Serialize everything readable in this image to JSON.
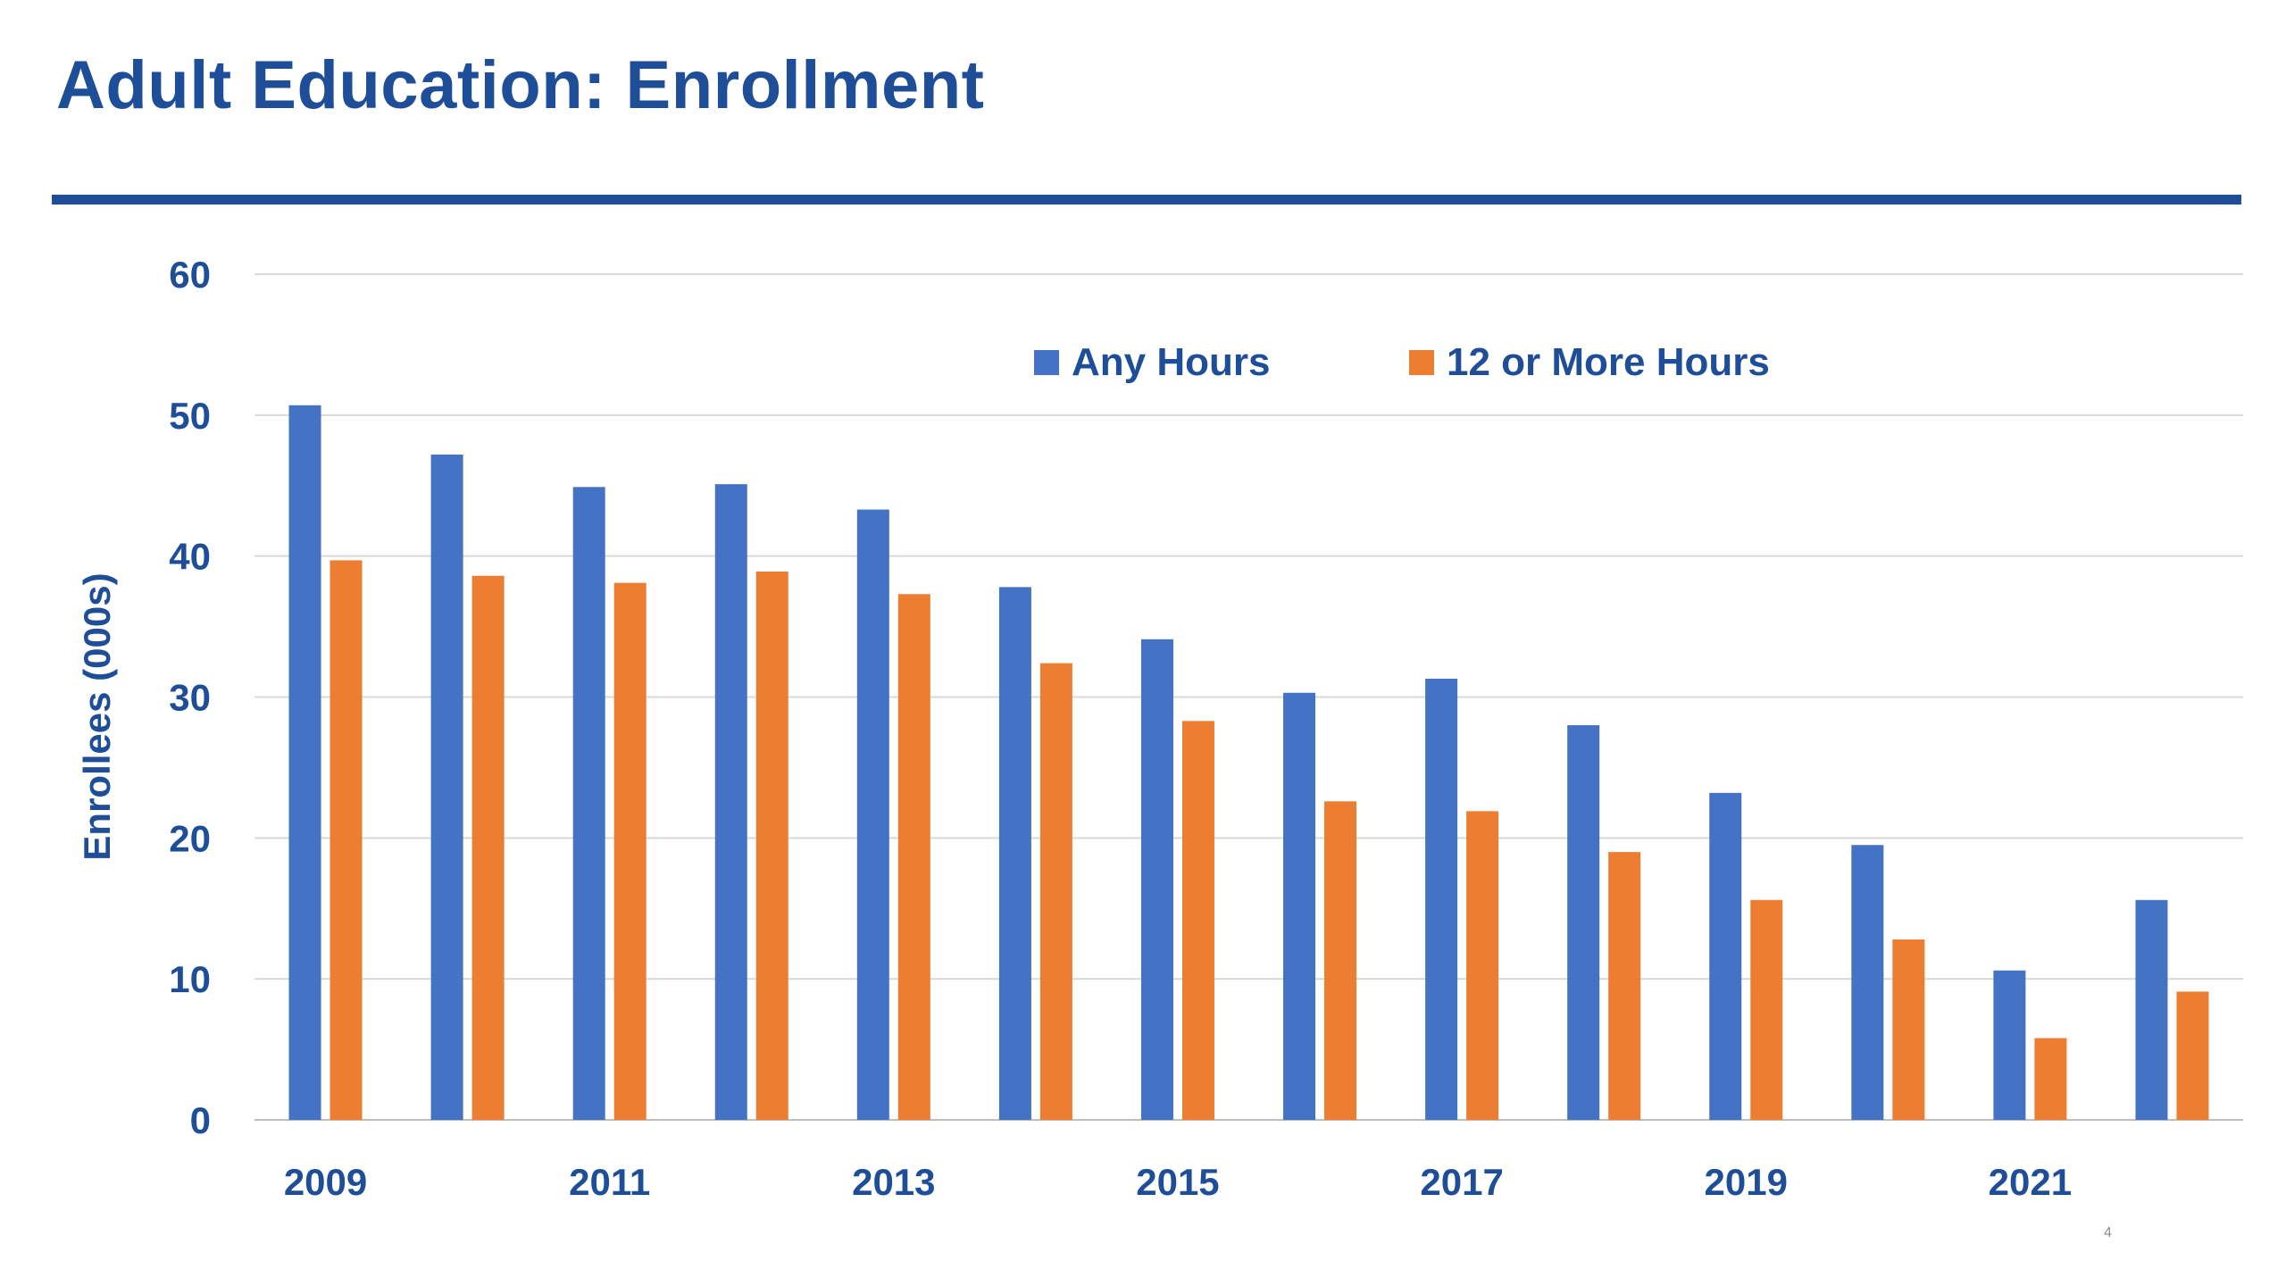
{
  "slide": {
    "title": "Adult Education: Enrollment",
    "page_number": "4"
  },
  "colors": {
    "title": "#1f4e99",
    "axis_text": "#1f4e99",
    "gridline": "#d9d9d9",
    "series_any": "#4472c4",
    "series_12plus": "#ed7d31"
  },
  "chart_data": {
    "type": "bar",
    "title": "",
    "xlabel": "",
    "ylabel": "Enrollees (000s)",
    "ylim": [
      0,
      60
    ],
    "yticks": [
      0,
      10,
      20,
      30,
      40,
      50,
      60
    ],
    "grid": true,
    "legend_position": "top-center",
    "categories": [
      "2009",
      "2010",
      "2011",
      "2012",
      "2013",
      "2014",
      "2015",
      "2016",
      "2017",
      "2018",
      "2019",
      "2020",
      "2021",
      "2022"
    ],
    "tick_labels": [
      "2009",
      "2011",
      "2013",
      "2015",
      "2017",
      "2019",
      "2021"
    ],
    "series": [
      {
        "name": "Any Hours",
        "color": "#4472c4",
        "values": [
          50.7,
          47.2,
          44.9,
          45.1,
          43.3,
          37.8,
          34.1,
          30.3,
          31.3,
          28.0,
          23.2,
          19.5,
          10.6,
          15.6
        ]
      },
      {
        "name": "12 or More Hours",
        "color": "#ed7d31",
        "values": [
          39.7,
          38.6,
          38.1,
          38.9,
          37.3,
          32.4,
          28.3,
          22.6,
          21.9,
          19.0,
          15.6,
          12.8,
          5.8,
          9.1
        ]
      }
    ]
  }
}
